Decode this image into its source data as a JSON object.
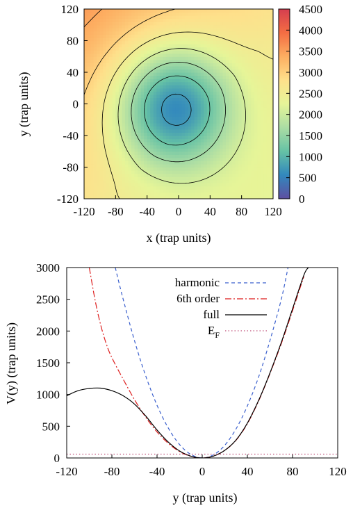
{
  "chart_data": [
    {
      "type": "heatmap",
      "title": "",
      "xlabel": "x (trap units)",
      "ylabel": "y (trap units)",
      "xlim": [
        -120,
        120
      ],
      "ylim": [
        -120,
        120
      ],
      "xticks": [
        "-120",
        "-80",
        "-40",
        "0",
        "40",
        "80",
        "120"
      ],
      "yticks": [
        "120",
        "80",
        "40",
        "0",
        "-40",
        "-80",
        "-120"
      ],
      "colorbar": {
        "range": [
          0,
          4500
        ],
        "ticks": [
          "4500",
          "4000",
          "3500",
          "3000",
          "2500",
          "2000",
          "1500",
          "1000",
          "500",
          "0"
        ],
        "colormap": [
          "#5e4fa2",
          "#3288bd",
          "#66c2a5",
          "#abdda4",
          "#e6f598",
          "#fee08b",
          "#fdae61",
          "#f46d43",
          "#d53e4f"
        ]
      },
      "features": {
        "minimum_center": [
          -5,
          -5
        ],
        "minimum_value": 0,
        "maximum_corner": [
          -120,
          120
        ],
        "maximum_value": 4500,
        "contour_count": 8
      },
      "grid": false
    },
    {
      "type": "line",
      "title": "",
      "xlabel": "y (trap units)",
      "ylabel": "V(y) (trap units)",
      "xlim": [
        -120,
        120
      ],
      "ylim": [
        0,
        3000
      ],
      "xticks": [
        "-120",
        "-80",
        "-40",
        "0",
        "40",
        "80",
        "120"
      ],
      "yticks": [
        "3000",
        "2500",
        "2000",
        "1500",
        "1000",
        "500",
        "0"
      ],
      "legend_position": "top-right",
      "grid": false,
      "series": [
        {
          "name": "harmonic",
          "color": "#3a5fcd",
          "style": "dashed",
          "x": [
            -77,
            -70,
            -60,
            -50,
            -40,
            -30,
            -20,
            -10,
            0,
            10,
            20,
            30,
            40,
            50,
            60,
            70,
            76
          ],
          "y": [
            3000,
            2500,
            1850,
            1290,
            830,
            470,
            210,
            55,
            0,
            50,
            200,
            460,
            820,
            1280,
            1850,
            2500,
            3000
          ]
        },
        {
          "name": "6th order",
          "color": "#dd1c1c",
          "style": "dash-dot",
          "x": [
            -100,
            -95,
            -90,
            -85,
            -80,
            -70,
            -60,
            -50,
            -40,
            -30,
            -20,
            -10,
            0,
            10,
            20,
            30,
            40,
            50,
            60,
            70,
            80,
            90
          ],
          "y": [
            3000,
            2500,
            2100,
            1800,
            1580,
            1240,
            920,
            640,
            410,
            230,
            100,
            25,
            0,
            30,
            120,
            280,
            540,
            900,
            1330,
            1800,
            2320,
            2860
          ]
        },
        {
          "name": "full",
          "color": "#000000",
          "style": "solid",
          "x": [
            -120,
            -110,
            -100,
            -90,
            -80,
            -70,
            -60,
            -50,
            -40,
            -30,
            -20,
            -10,
            0,
            10,
            20,
            30,
            40,
            50,
            60,
            70,
            80,
            90,
            94
          ],
          "y": [
            980,
            1060,
            1095,
            1100,
            1060,
            980,
            850,
            660,
            440,
            250,
            110,
            28,
            0,
            30,
            120,
            285,
            550,
            910,
            1340,
            1820,
            2350,
            2880,
            3000
          ]
        },
        {
          "name": "E_F",
          "color": "#c0507a",
          "style": "dotted",
          "x": [
            -120,
            120
          ],
          "y": [
            60,
            60
          ]
        }
      ]
    }
  ]
}
